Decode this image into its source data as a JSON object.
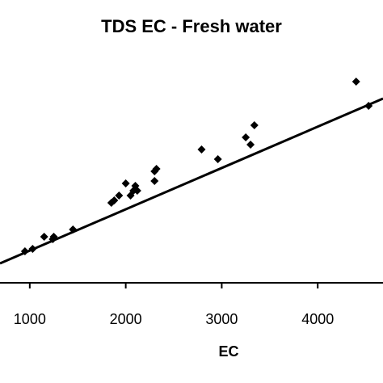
{
  "chart_data": {
    "type": "scatter",
    "title": "TDS EC - Fresh water",
    "xlabel": "EC",
    "ylabel": "",
    "xticks": [
      1000,
      2000,
      3000,
      4000
    ],
    "xlim": [
      690,
      4680
    ],
    "ylim": [
      0,
      100
    ],
    "series": [
      {
        "marker": "diamond",
        "color": "#000000",
        "points": [
          [
            950,
            13
          ],
          [
            1030,
            14
          ],
          [
            1150,
            19
          ],
          [
            1240,
            18
          ],
          [
            1250,
            19
          ],
          [
            1450,
            22
          ],
          [
            1850,
            33
          ],
          [
            1880,
            34
          ],
          [
            1930,
            36
          ],
          [
            2000,
            41
          ],
          [
            2050,
            36
          ],
          [
            2080,
            38
          ],
          [
            2100,
            40
          ],
          [
            2120,
            38
          ],
          [
            2300,
            42
          ],
          [
            2300,
            46
          ],
          [
            2320,
            47
          ],
          [
            2790,
            55
          ],
          [
            2960,
            51
          ],
          [
            3250,
            60
          ],
          [
            3300,
            57
          ],
          [
            3340,
            65
          ],
          [
            4400,
            83
          ],
          [
            4530,
            73
          ]
        ]
      }
    ],
    "trendline": {
      "x": [
        690,
        4680
      ],
      "y": [
        8,
        76
      ]
    },
    "grid": false,
    "legend": "none"
  }
}
